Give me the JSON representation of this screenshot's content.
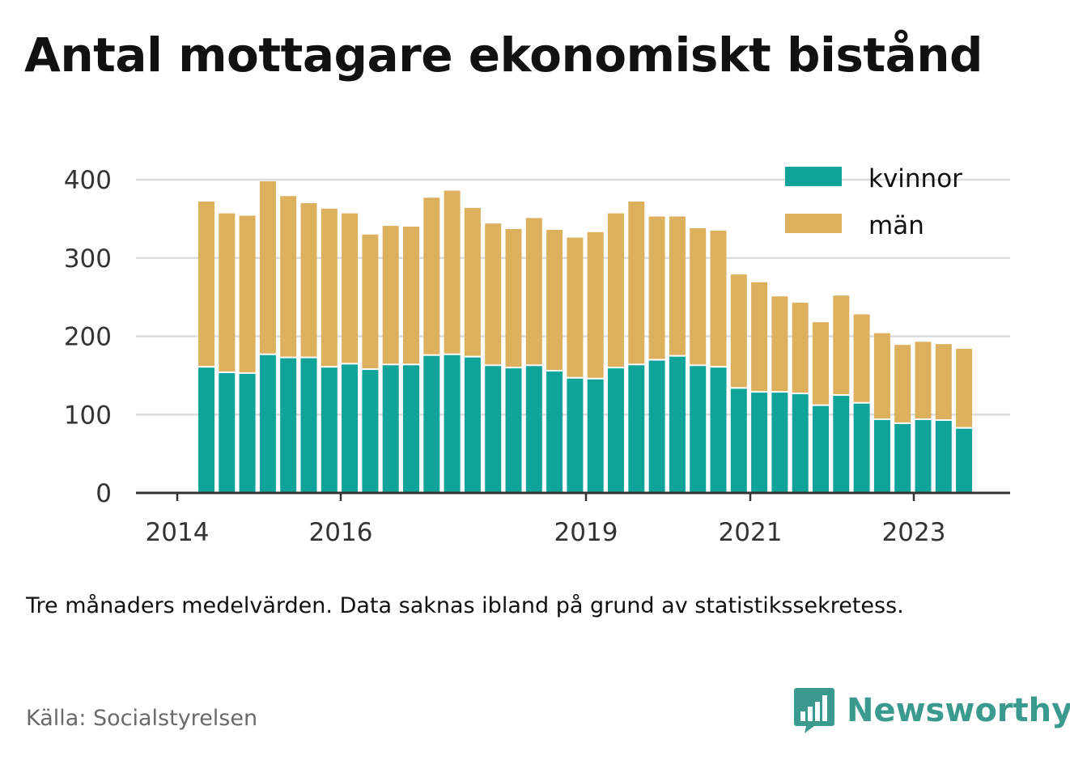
{
  "title": "Antal mottagare ekonomiskt bistånd",
  "note": "Tre månaders medelvärden. Data saknas ibland på grund av statistikssekretess.",
  "source": "Källa: Socialstyrelsen",
  "brand": {
    "name": "Newsworthy",
    "icon": "newsworthy-chart-bubble-icon",
    "color": "#3a9a8d"
  },
  "colors": {
    "kvinnor": "#0fa39a",
    "man": "#dcb05c",
    "grid": "#dddddd",
    "axis": "#333333"
  },
  "chart_data": {
    "type": "bar",
    "stacked": true,
    "ylim": [
      0,
      400
    ],
    "yticks": [
      0,
      100,
      200,
      300,
      400
    ],
    "xticks": [
      "2014",
      "2016",
      "2019",
      "2021",
      "2023"
    ],
    "grid": true,
    "legend_position": "top-right",
    "series": [
      {
        "name": "kvinnor",
        "values": [
          160,
          153,
          152,
          176,
          172,
          172,
          160,
          164,
          157,
          163,
          163,
          175,
          176,
          173,
          162,
          159,
          162,
          155,
          146,
          145,
          159,
          163,
          169,
          174,
          162,
          160,
          133,
          128,
          128,
          126,
          111,
          124,
          114,
          93,
          88,
          93,
          92,
          82
        ]
      },
      {
        "name": "män",
        "values": [
          212,
          204,
          202,
          222,
          207,
          198,
          203,
          193,
          173,
          178,
          177,
          202,
          210,
          191,
          182,
          178,
          189,
          181,
          180,
          188,
          198,
          209,
          184,
          179,
          176,
          175,
          146,
          141,
          123,
          117,
          107,
          128,
          114,
          111,
          101,
          100,
          98,
          102
        ]
      }
    ]
  }
}
